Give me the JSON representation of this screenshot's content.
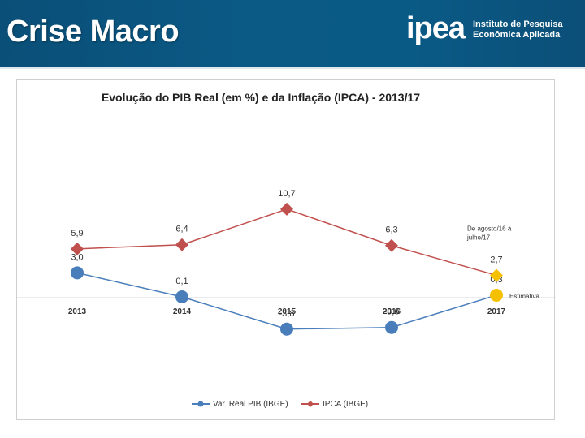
{
  "header": {
    "title": "Crise Macro",
    "logo_mark": "ipea",
    "logo_line1": "Instituto de Pesquisa",
    "logo_line2": "Econômica Aplicada"
  },
  "colors": {
    "header_bg": "#0b5a86",
    "pib": "#4a7ebb",
    "ipca": "#c0504d",
    "estimate": "#f5c000"
  },
  "chart_data": {
    "type": "line",
    "title": "Evolução do PIB Real (em %) e da Inflação (IPCA) - 2013/17",
    "categories": [
      "2013",
      "2014",
      "2015",
      "2016",
      "2017"
    ],
    "series": [
      {
        "name": "Var. Real PIB (IBGE)",
        "values": [
          3.0,
          0.1,
          -3.8,
          -3.6,
          0.3
        ],
        "labels": [
          "3,0",
          "0,1",
          "-3,8",
          "-3,6",
          "0,3"
        ],
        "marker": "circle",
        "color": "#4a7ebb"
      },
      {
        "name": "IPCA (IBGE)",
        "values": [
          5.9,
          6.4,
          10.7,
          6.3,
          2.7
        ],
        "labels": [
          "5,9",
          "6,4",
          "10,7",
          "6,3",
          "2,7"
        ],
        "marker": "diamond",
        "color": "#c0504d"
      }
    ],
    "highlight_last_point_color": "#f5c000",
    "annotations": [
      {
        "text_lines": [
          "De agosto/16 à",
          "julho/17"
        ],
        "series": "IPCA (IBGE)",
        "category": "2017"
      },
      {
        "text_lines": [
          "Estimativa"
        ],
        "series": "Var. Real PIB (IBGE)",
        "category": "2017"
      }
    ],
    "ylim": [
      -5,
      12
    ],
    "xlabel": "",
    "ylabel": "",
    "grid": false,
    "legend_position": "bottom"
  }
}
